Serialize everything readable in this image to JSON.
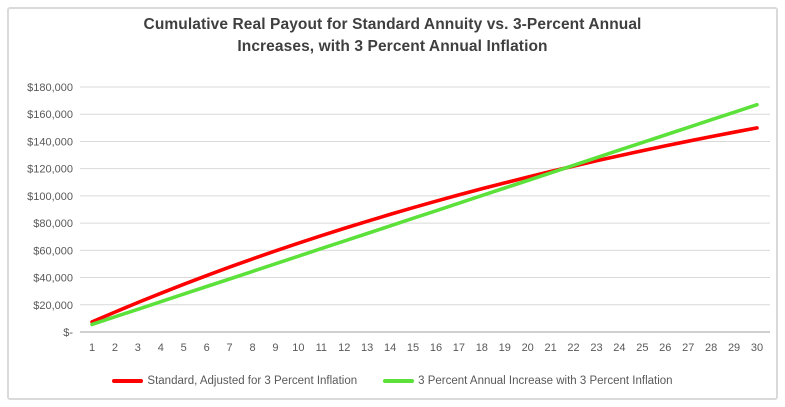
{
  "window": {
    "background_color": "#ffffff",
    "border_color": "#dadada"
  },
  "title_lines": [
    "Cumulative Real Payout for Standard Annuity vs. 3-Percent Annual",
    "Increases, with 3 Percent Annual Inflation"
  ],
  "colors": {
    "title_text": "#3f3f3f",
    "axis_text": "#595959",
    "gridline": "#d9d9d9",
    "axis_line": "#bfbfbf",
    "series_standard": "#ff0000",
    "series_increase": "#5ce13b"
  },
  "chart_data": {
    "type": "line",
    "title": "Cumulative Real Payout for Standard Annuity vs. 3-Percent Annual Increases, with 3 Percent Annual Inflation",
    "xlabel": "",
    "ylabel": "",
    "x": [
      1,
      2,
      3,
      4,
      5,
      6,
      7,
      8,
      9,
      10,
      11,
      12,
      13,
      14,
      15,
      16,
      17,
      18,
      19,
      20,
      21,
      22,
      23,
      24,
      25,
      26,
      27,
      28,
      29,
      30
    ],
    "ylim": [
      0,
      180000
    ],
    "y_ticks": [
      0,
      20000,
      40000,
      60000,
      80000,
      100000,
      120000,
      140000,
      160000,
      180000
    ],
    "y_tick_labels": [
      "$-",
      "$20,000",
      "$40,000",
      "$60,000",
      "$80,000",
      "$100,000",
      "$120,000",
      "$140,000",
      "$160,000",
      "$180,000"
    ],
    "grid": true,
    "legend_position": "bottom",
    "series": [
      {
        "name": "Standard, Adjusted for 3 Percent Inflation",
        "color": "#ff0000",
        "values": [
          7427,
          14638,
          21639,
          28436,
          35035,
          41442,
          47662,
          53701,
          59564,
          65256,
          70783,
          76148,
          81357,
          86415,
          91325,
          96092,
          100721,
          105214,
          109577,
          113813,
          117925,
          121917,
          125794,
          129557,
          133211,
          136758,
          140202,
          143545,
          146792,
          149943
        ]
      },
      {
        "name": "3 Percent Annual Increase with 3 Percent Inflation",
        "color": "#5ce13b",
        "values": [
          5567,
          11134,
          16701,
          22268,
          27835,
          33402,
          38969,
          44536,
          50103,
          55670,
          61237,
          66804,
          72371,
          77938,
          83505,
          89072,
          94639,
          100206,
          105773,
          111340,
          116907,
          122474,
          128041,
          133608,
          139175,
          144742,
          150309,
          155876,
          161443,
          167010
        ]
      }
    ]
  }
}
